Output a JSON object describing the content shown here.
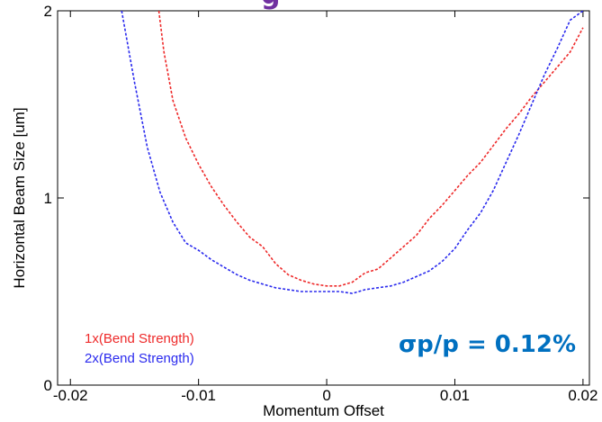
{
  "chart_data": {
    "type": "line",
    "title_fragment": "g",
    "xlabel": "Momentum Offset",
    "ylabel": "Horizontal Beam Size [um]",
    "xlim": [
      -0.021,
      0.0205
    ],
    "ylim": [
      0,
      2
    ],
    "x_ticks": [
      -0.02,
      -0.01,
      0,
      0.01,
      0.02
    ],
    "x_tick_labels": [
      "-0.02",
      "-0.01",
      "0",
      "0.01",
      "0.02"
    ],
    "y_ticks": [
      0,
      1,
      2
    ],
    "y_tick_labels": [
      "0",
      "1",
      "2"
    ],
    "grid": false,
    "legend_position": "bottom-left",
    "annotation": "σp/p = 0.12%",
    "colors": {
      "title": "#7030a0",
      "annotation": "#0070c0",
      "series1": "#ee2a2a",
      "series2": "#2a2aee"
    },
    "series": [
      {
        "name": "1x(Bend Strength)",
        "x": [
          -0.0131,
          -0.0127,
          -0.012,
          -0.011,
          -0.01,
          -0.009,
          -0.008,
          -0.007,
          -0.006,
          -0.005,
          -0.004,
          -0.003,
          -0.002,
          -0.001,
          0,
          0.001,
          0.002,
          0.003,
          0.004,
          0.005,
          0.006,
          0.007,
          0.008,
          0.009,
          0.01,
          0.011,
          0.012,
          0.013,
          0.014,
          0.015,
          0.016,
          0.017,
          0.018,
          0.019,
          0.02
        ],
        "y": [
          2.0,
          1.78,
          1.52,
          1.32,
          1.18,
          1.06,
          0.96,
          0.87,
          0.79,
          0.74,
          0.65,
          0.59,
          0.56,
          0.54,
          0.53,
          0.53,
          0.55,
          0.6,
          0.62,
          0.68,
          0.74,
          0.8,
          0.89,
          0.96,
          1.04,
          1.12,
          1.19,
          1.28,
          1.37,
          1.45,
          1.54,
          1.62,
          1.7,
          1.78,
          1.91
        ]
      },
      {
        "name": "2x(Bend Strength)",
        "x": [
          -0.016,
          -0.015,
          -0.014,
          -0.013,
          -0.012,
          -0.011,
          -0.01,
          -0.009,
          -0.008,
          -0.007,
          -0.006,
          -0.005,
          -0.004,
          -0.003,
          -0.002,
          -0.001,
          0,
          0.001,
          0.002,
          0.003,
          0.004,
          0.005,
          0.006,
          0.007,
          0.008,
          0.009,
          0.01,
          0.011,
          0.012,
          0.013,
          0.014,
          0.015,
          0.016,
          0.017,
          0.018,
          0.019,
          0.02
        ],
        "y": [
          2.0,
          1.62,
          1.27,
          1.03,
          0.87,
          0.76,
          0.72,
          0.67,
          0.63,
          0.59,
          0.56,
          0.54,
          0.52,
          0.51,
          0.5,
          0.5,
          0.5,
          0.5,
          0.49,
          0.51,
          0.52,
          0.53,
          0.55,
          0.58,
          0.61,
          0.66,
          0.73,
          0.83,
          0.92,
          1.04,
          1.19,
          1.34,
          1.5,
          1.66,
          1.8,
          1.95,
          2.0
        ]
      }
    ]
  }
}
